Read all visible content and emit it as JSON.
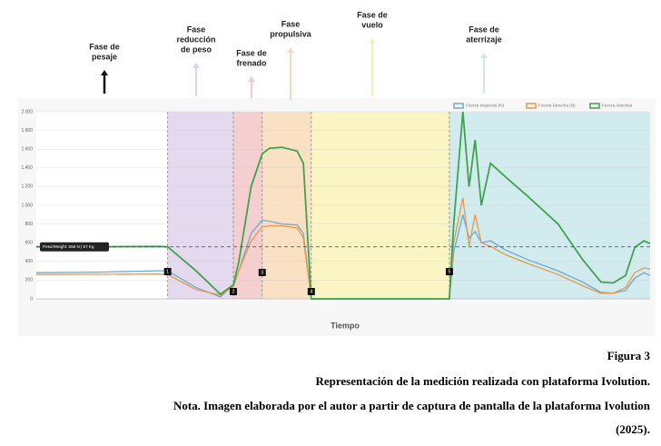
{
  "chart_data": {
    "type": "line",
    "x_label": "Tiempo",
    "x": [
      0,
      10,
      20,
      21.4,
      26,
      30,
      32.1,
      33,
      35,
      36.8,
      38,
      40,
      42.5,
      43.5,
      44.8,
      56,
      67.3,
      68,
      69.5,
      70.5,
      71.5,
      72.5,
      74,
      76.5,
      80,
      85,
      89,
      92,
      94,
      96,
      97.5,
      99,
      100
    ],
    "xlim": [
      0,
      100
    ],
    "ylim": [
      0,
      2000
    ],
    "yticks": [
      0,
      200,
      400,
      600,
      800,
      {
        "value": 1000,
        "label": "1.000"
      },
      {
        "value": 1200,
        "label": "1.200"
      },
      {
        "value": 1400,
        "label": "1.400"
      },
      {
        "value": 1600,
        "label": "1.600"
      },
      {
        "value": 1800,
        "label": "1.800"
      },
      {
        "value": 2000,
        "label": "2.000"
      }
    ],
    "grid": true,
    "legend": "top-right",
    "series": [
      {
        "name": "Fuerza Izquierda (N)",
        "color": "#6fa8d0",
        "values": [
          280,
          285,
          300,
          300,
          120,
          20,
          150,
          300,
          700,
          840,
          830,
          800,
          790,
          700,
          0,
          0,
          0,
          500,
          900,
          650,
          720,
          600,
          620,
          520,
          420,
          300,
          180,
          70,
          60,
          90,
          220,
          280,
          250
        ]
      },
      {
        "name": "Fuerza Derecha (N)",
        "color": "#e59a4a",
        "values": [
          260,
          262,
          265,
          260,
          100,
          40,
          130,
          300,
          620,
          770,
          780,
          780,
          760,
          650,
          0,
          0,
          0,
          600,
          1080,
          560,
          900,
          600,
          560,
          470,
          380,
          260,
          140,
          60,
          60,
          120,
          280,
          330,
          320
        ]
      },
      {
        "name": "Fuerza Absoluta",
        "color": "#3fa34d",
        "values": [
          556,
          556,
          560,
          556,
          300,
          50,
          150,
          400,
          1200,
          1550,
          1610,
          1620,
          1580,
          1450,
          0,
          0,
          0,
          800,
          2000,
          1200,
          1700,
          1000,
          1450,
          1300,
          1100,
          800,
          420,
          180,
          170,
          250,
          550,
          620,
          590
        ]
      }
    ],
    "weight_line": {
      "value": 556,
      "label": "Peso/Weight: 556 N | 57 Kg"
    },
    "phases": [
      {
        "lines": [
          "Fase de",
          "pesaje"
        ],
        "start": 0,
        "end": 21.4,
        "color": "#ffffff",
        "arrow": "#111111"
      },
      {
        "lines": [
          "Fase",
          "reducción",
          "de peso"
        ],
        "start": 21.4,
        "end": 32.1,
        "color": "#e4d9ee",
        "arrow": "#ddd2ea"
      },
      {
        "lines": [
          "Fase de",
          "frenado"
        ],
        "start": 32.1,
        "end": 36.8,
        "color": "#f5cfd0",
        "arrow": "#f2c9cb"
      },
      {
        "lines": [
          "Fase",
          "propulsiva"
        ],
        "start": 36.8,
        "end": 44.8,
        "color": "#fbe1c4",
        "arrow": "#f7d8b8"
      },
      {
        "lines": [
          "Fase de",
          "vuelo"
        ],
        "start": 44.8,
        "end": 67.3,
        "color": "#fbf5c4",
        "arrow": "#f7eeb4"
      },
      {
        "lines": [
          "Fase de",
          "aterrizaje"
        ],
        "start": 67.3,
        "end": 100,
        "color": "#d2ebee",
        "arrow": "#cde8ea"
      }
    ],
    "markers": [
      "1",
      "2",
      "3",
      "4",
      "5"
    ]
  },
  "caption": [
    "Figura 3",
    "Representación de la medición realizada con plataforma Ivolution.",
    "Nota. Imagen elaborada por el autor a partir de captura de pantalla de la plataforma Ivolution",
    "(2025)."
  ]
}
